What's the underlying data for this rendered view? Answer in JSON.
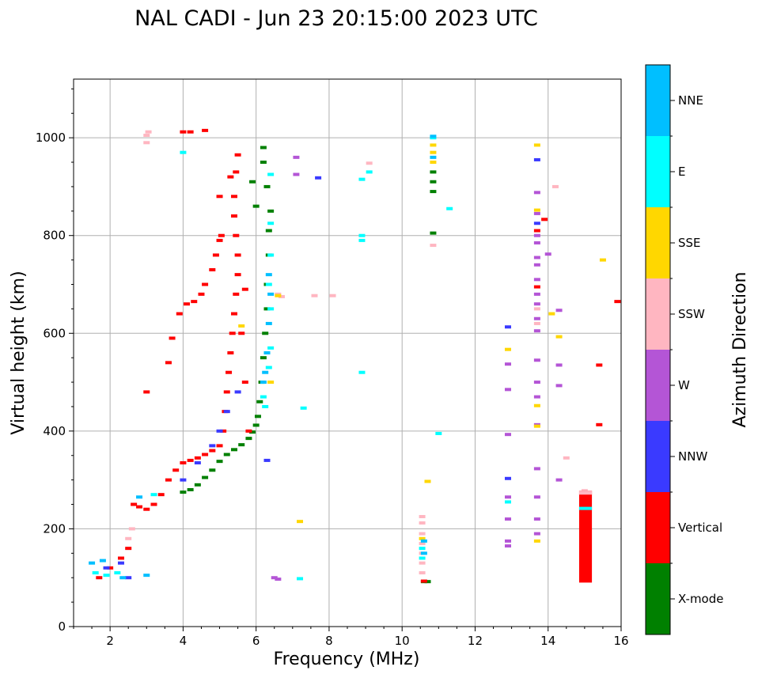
{
  "chart_data": {
    "type": "scatter",
    "title": "NAL CADI - Jun 23 20:15:00 2023 UTC",
    "xlabel": "Frequency (MHz)",
    "ylabel": "Virtual height (km)",
    "xlim": [
      1,
      16
    ],
    "ylim": [
      0,
      1120
    ],
    "xticks": [
      2,
      4,
      6,
      8,
      10,
      12,
      14,
      16
    ],
    "yticks": [
      0,
      200,
      400,
      600,
      800,
      1000
    ],
    "grid": true,
    "colorbar": {
      "title": "Azimuth Direction",
      "categories": [
        {
          "name": "X-mode",
          "color": "#008000"
        },
        {
          "name": "Vertical",
          "color": "#ff0000"
        },
        {
          "name": "NNW",
          "color": "#3a3aff"
        },
        {
          "name": "W",
          "color": "#b455d6"
        },
        {
          "name": "SSW",
          "color": "#ffb6c1"
        },
        {
          "name": "SSE",
          "color": "#ffd700"
        },
        {
          "name": "E",
          "color": "#00ffff"
        },
        {
          "name": "NNE",
          "color": "#00bfff"
        }
      ]
    },
    "traces": [
      {
        "name": "X-mode",
        "points": [
          [
            4.0,
            275
          ],
          [
            4.2,
            280
          ],
          [
            4.4,
            290
          ],
          [
            4.6,
            305
          ],
          [
            4.8,
            320
          ],
          [
            5.0,
            338
          ],
          [
            5.2,
            352
          ],
          [
            5.4,
            362
          ],
          [
            5.6,
            372
          ],
          [
            5.8,
            385
          ],
          [
            5.9,
            398
          ],
          [
            6.0,
            412
          ],
          [
            6.05,
            430
          ],
          [
            6.1,
            460
          ],
          [
            6.15,
            500
          ],
          [
            6.2,
            550
          ],
          [
            6.25,
            600
          ],
          [
            6.3,
            650
          ],
          [
            6.3,
            700
          ],
          [
            6.35,
            760
          ],
          [
            6.35,
            810
          ],
          [
            6.4,
            850
          ],
          [
            6.3,
            900
          ],
          [
            6.2,
            950
          ],
          [
            6.2,
            980
          ],
          [
            5.9,
            910
          ],
          [
            6.0,
            860
          ],
          [
            10.85,
            890
          ],
          [
            10.85,
            910
          ],
          [
            10.85,
            930
          ],
          [
            10.85,
            805
          ],
          [
            10.6,
            92
          ],
          [
            10.7,
            92
          ]
        ]
      },
      {
        "name": "Vertical",
        "points": [
          [
            1.7,
            100
          ],
          [
            2.0,
            120
          ],
          [
            2.3,
            140
          ],
          [
            2.5,
            160
          ],
          [
            2.65,
            250
          ],
          [
            2.8,
            245
          ],
          [
            3.0,
            240
          ],
          [
            3.2,
            250
          ],
          [
            3.4,
            270
          ],
          [
            3.6,
            300
          ],
          [
            3.8,
            320
          ],
          [
            4.0,
            335
          ],
          [
            4.2,
            340
          ],
          [
            4.4,
            345
          ],
          [
            4.6,
            352
          ],
          [
            4.8,
            360
          ],
          [
            5.0,
            370
          ],
          [
            5.1,
            400
          ],
          [
            5.15,
            440
          ],
          [
            5.2,
            480
          ],
          [
            5.25,
            520
          ],
          [
            5.3,
            560
          ],
          [
            5.35,
            600
          ],
          [
            5.4,
            640
          ],
          [
            5.45,
            680
          ],
          [
            5.5,
            720
          ],
          [
            5.5,
            760
          ],
          [
            5.45,
            800
          ],
          [
            5.4,
            840
          ],
          [
            5.4,
            880
          ],
          [
            5.45,
            930
          ],
          [
            5.5,
            965
          ],
          [
            3.0,
            480
          ],
          [
            3.6,
            540
          ],
          [
            3.7,
            590
          ],
          [
            3.9,
            640
          ],
          [
            4.1,
            660
          ],
          [
            4.3,
            665
          ],
          [
            4.5,
            680
          ],
          [
            4.6,
            700
          ],
          [
            4.8,
            730
          ],
          [
            4.9,
            760
          ],
          [
            5.0,
            790
          ],
          [
            5.05,
            800
          ],
          [
            5.0,
            880
          ],
          [
            5.3,
            920
          ],
          [
            5.7,
            690
          ],
          [
            5.6,
            600
          ],
          [
            5.7,
            500
          ],
          [
            5.8,
            400
          ],
          [
            4.0,
            1012
          ],
          [
            4.2,
            1012
          ],
          [
            4.6,
            1015
          ],
          [
            10.6,
            93
          ],
          [
            13.7,
            810
          ],
          [
            13.9,
            833
          ],
          [
            13.7,
            695
          ],
          [
            15.4,
            535
          ],
          [
            15.4,
            413
          ],
          [
            15.9,
            665
          ]
        ]
      },
      {
        "name": "NNW",
        "points": [
          [
            1.9,
            120
          ],
          [
            2.3,
            130
          ],
          [
            2.5,
            100
          ],
          [
            4.0,
            300
          ],
          [
            4.4,
            335
          ],
          [
            4.8,
            370
          ],
          [
            5.0,
            400
          ],
          [
            5.2,
            440
          ],
          [
            5.5,
            480
          ],
          [
            12.9,
            303
          ],
          [
            12.9,
            613
          ],
          [
            13.7,
            955
          ],
          [
            13.7,
            825
          ],
          [
            7.7,
            918
          ],
          [
            6.3,
            340
          ]
        ]
      },
      {
        "name": "W",
        "points": [
          [
            6.5,
            100
          ],
          [
            6.6,
            97
          ],
          [
            7.1,
            960
          ],
          [
            7.1,
            925
          ],
          [
            12.9,
            393
          ],
          [
            12.9,
            265
          ],
          [
            12.9,
            220
          ],
          [
            12.9,
            175
          ],
          [
            12.9,
            165
          ],
          [
            12.9,
            485
          ],
          [
            12.9,
            537
          ],
          [
            13.7,
            545
          ],
          [
            13.7,
            500
          ],
          [
            13.7,
            470
          ],
          [
            13.7,
            413
          ],
          [
            13.7,
            323
          ],
          [
            13.7,
            265
          ],
          [
            13.7,
            220
          ],
          [
            13.7,
            190
          ],
          [
            13.7,
            605
          ],
          [
            13.7,
            630
          ],
          [
            13.7,
            660
          ],
          [
            13.7,
            680
          ],
          [
            13.7,
            710
          ],
          [
            13.7,
            740
          ],
          [
            13.7,
            755
          ],
          [
            13.7,
            785
          ],
          [
            13.7,
            800
          ],
          [
            13.7,
            845
          ],
          [
            13.7,
            888
          ],
          [
            14.0,
            762
          ],
          [
            14.3,
            647
          ],
          [
            14.3,
            535
          ],
          [
            14.3,
            493
          ],
          [
            14.3,
            300
          ]
        ]
      },
      {
        "name": "SSW",
        "points": [
          [
            3.0,
            990
          ],
          [
            3.0,
            1005
          ],
          [
            3.05,
            1012
          ],
          [
            2.5,
            180
          ],
          [
            2.6,
            200
          ],
          [
            6.6,
            680
          ],
          [
            6.7,
            675
          ],
          [
            7.6,
            677
          ],
          [
            8.1,
            677
          ],
          [
            9.1,
            948
          ],
          [
            10.55,
            225
          ],
          [
            10.55,
            212
          ],
          [
            10.55,
            190
          ],
          [
            10.55,
            170
          ],
          [
            10.55,
            150
          ],
          [
            10.55,
            130
          ],
          [
            10.55,
            110
          ],
          [
            10.85,
            780
          ],
          [
            13.7,
            650
          ],
          [
            13.7,
            620
          ],
          [
            14.2,
            900
          ],
          [
            14.5,
            345
          ],
          [
            15.0,
            278
          ]
        ]
      },
      {
        "name": "SSE",
        "points": [
          [
            6.6,
            677
          ],
          [
            6.4,
            500
          ],
          [
            10.85,
            950
          ],
          [
            10.85,
            970
          ],
          [
            10.85,
            985
          ],
          [
            10.7,
            297
          ],
          [
            10.55,
            180
          ],
          [
            12.9,
            567
          ],
          [
            13.7,
            985
          ],
          [
            13.7,
            452
          ],
          [
            13.7,
            410
          ],
          [
            13.7,
            175
          ],
          [
            13.7,
            852
          ],
          [
            14.1,
            640
          ],
          [
            14.3,
            593
          ],
          [
            15.5,
            750
          ],
          [
            7.2,
            215
          ],
          [
            5.6,
            615
          ]
        ]
      },
      {
        "name": "E",
        "points": [
          [
            1.6,
            110
          ],
          [
            1.9,
            105
          ],
          [
            2.2,
            110
          ],
          [
            6.2,
            470
          ],
          [
            6.25,
            450
          ],
          [
            6.35,
            530
          ],
          [
            6.4,
            570
          ],
          [
            6.4,
            650
          ],
          [
            6.35,
            700
          ],
          [
            6.4,
            760
          ],
          [
            6.4,
            925
          ],
          [
            6.4,
            825
          ],
          [
            8.9,
            800
          ],
          [
            8.9,
            790
          ],
          [
            8.9,
            915
          ],
          [
            9.1,
            930
          ],
          [
            8.9,
            520
          ],
          [
            11.3,
            855
          ],
          [
            11.0,
            395
          ],
          [
            10.85,
            1000
          ],
          [
            12.9,
            255
          ],
          [
            15.0,
            240
          ],
          [
            7.3,
            447
          ],
          [
            7.2,
            98
          ],
          [
            3.2,
            270
          ],
          [
            4.0,
            970
          ],
          [
            10.55,
            160
          ],
          [
            10.55,
            140
          ]
        ]
      },
      {
        "name": "NNE",
        "points": [
          [
            1.5,
            130
          ],
          [
            1.8,
            135
          ],
          [
            2.35,
            100
          ],
          [
            2.8,
            265
          ],
          [
            3.0,
            105
          ],
          [
            6.2,
            500
          ],
          [
            6.25,
            520
          ],
          [
            6.3,
            560
          ],
          [
            6.35,
            620
          ],
          [
            6.4,
            680
          ],
          [
            6.35,
            720
          ],
          [
            10.6,
            175
          ],
          [
            10.6,
            150
          ],
          [
            10.85,
            1003
          ],
          [
            10.85,
            960
          ],
          [
            15.1,
            248
          ]
        ]
      }
    ],
    "x_mode_bar": {
      "x": [
        14.85,
        15.2
      ],
      "y": [
        90,
        278
      ],
      "color_segments": [
        "Vertical",
        "E",
        "SSW"
      ]
    }
  }
}
